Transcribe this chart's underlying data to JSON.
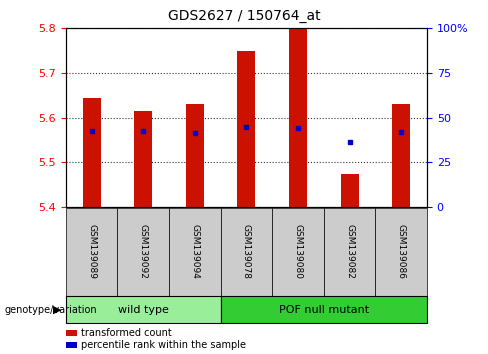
{
  "title": "GDS2627 / 150764_at",
  "samples": [
    "GSM139089",
    "GSM139092",
    "GSM139094",
    "GSM139078",
    "GSM139080",
    "GSM139082",
    "GSM139086"
  ],
  "bar_tops": [
    5.645,
    5.615,
    5.63,
    5.75,
    5.8,
    5.475,
    5.63
  ],
  "bar_bottom": 5.4,
  "blue_dot_y": [
    5.57,
    5.57,
    5.565,
    5.58,
    5.578,
    5.545,
    5.568
  ],
  "ylim": [
    5.4,
    5.8
  ],
  "right_ylim": [
    0,
    100
  ],
  "right_yticks": [
    0,
    25,
    50,
    75,
    100
  ],
  "right_yticklabels": [
    "0",
    "25",
    "50",
    "75",
    "100%"
  ],
  "left_yticks": [
    5.4,
    5.5,
    5.6,
    5.7,
    5.8
  ],
  "bar_color": "#cc1100",
  "blue_dot_color": "#0000cc",
  "bar_width": 0.35,
  "groups": [
    {
      "label": "wild type",
      "indices": [
        0,
        1,
        2
      ],
      "color": "#99ee99"
    },
    {
      "label": "POF null mutant",
      "indices": [
        3,
        4,
        5,
        6
      ],
      "color": "#33cc33"
    }
  ],
  "group_label": "genotype/variation",
  "legend_items": [
    {
      "color": "#cc1100",
      "label": "transformed count"
    },
    {
      "color": "#0000cc",
      "label": "percentile rank within the sample"
    }
  ],
  "tick_label_bg": "#cccccc",
  "grid_linestyle": "dotted"
}
